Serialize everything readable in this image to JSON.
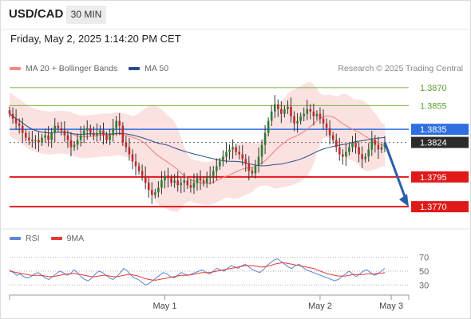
{
  "header": {
    "symbol": "USD/CAD",
    "timeframe": "30 MIN",
    "datetime": "Friday, May 2, 2025 1:14:20 PM CET"
  },
  "legend": {
    "items": [
      {
        "label": "MA 20 + Bollinger Bands",
        "color": "#f28b82"
      },
      {
        "label": "MA 50",
        "color": "#2c4f8a"
      }
    ],
    "credit": "Research © 2025 Trading Central"
  },
  "rsi_legend": {
    "items": [
      {
        "label": "RSI",
        "color": "#5b86d6"
      },
      {
        "label": "9MA",
        "color": "#e53935"
      }
    ]
  },
  "chart_data": [
    {
      "type": "candlestick",
      "title": "",
      "ylim": [
        1.3752,
        1.3878
      ],
      "x_ticks": [
        {
          "label": "May 1",
          "index": 48
        },
        {
          "label": "May 2",
          "index": 96
        },
        {
          "label": "May 3",
          "index": 118
        }
      ],
      "levels": [
        {
          "value": 1.387,
          "label": "1.3870",
          "kind": "target",
          "color": "#7cb342"
        },
        {
          "value": 1.3855,
          "label": "1.3855",
          "kind": "target",
          "color": "#7cb342"
        },
        {
          "value": 1.3835,
          "label": "1.3835",
          "kind": "pivot",
          "color": "#2f6fe0"
        },
        {
          "value": 1.3824,
          "label": "1.3824",
          "kind": "last",
          "color": "#2b2b2b"
        },
        {
          "value": 1.3795,
          "label": "1.3795",
          "kind": "support",
          "color": "#e01919"
        },
        {
          "value": 1.377,
          "label": "1.3770",
          "kind": "support",
          "color": "#e01919"
        }
      ],
      "close_path": [
        1.3848,
        1.3844,
        1.384,
        1.3838,
        1.3832,
        1.3828,
        1.3826,
        1.3825,
        1.3826,
        1.3824,
        1.3828,
        1.383,
        1.3826,
        1.3832,
        1.3838,
        1.3836,
        1.3834,
        1.383,
        1.3826,
        1.382,
        1.3822,
        1.3826,
        1.383,
        1.3834,
        1.3836,
        1.3832,
        1.383,
        1.3832,
        1.3834,
        1.383,
        1.3826,
        1.383,
        1.3836,
        1.3842,
        1.3838,
        1.3824,
        1.382,
        1.3814,
        1.3808,
        1.3804,
        1.38,
        1.3796,
        1.379,
        1.3784,
        1.378,
        1.3782,
        1.3786,
        1.3792,
        1.3796,
        1.3794,
        1.379,
        1.3792,
        1.3788,
        1.379,
        1.3792,
        1.3788,
        1.3786,
        1.379,
        1.3794,
        1.3792,
        1.379,
        1.3794,
        1.3796,
        1.38,
        1.3804,
        1.3808,
        1.3812,
        1.3816,
        1.3818,
        1.382,
        1.3816,
        1.3814,
        1.381,
        1.3806,
        1.38,
        1.3798,
        1.3804,
        1.3812,
        1.3822,
        1.3832,
        1.3842,
        1.385,
        1.3856,
        1.3852,
        1.3848,
        1.3852,
        1.3854,
        1.3846,
        1.384,
        1.3842,
        1.3846,
        1.3848,
        1.3852,
        1.385,
        1.3846,
        1.3848,
        1.3844,
        1.384,
        1.3836,
        1.383,
        1.3826,
        1.382,
        1.3814,
        1.3812,
        1.3816,
        1.382,
        1.3824,
        1.382,
        1.3814,
        1.381,
        1.3812,
        1.3818,
        1.3826,
        1.3822,
        1.3818,
        1.382,
        1.3824
      ]
    },
    {
      "type": "line",
      "title": "RSI",
      "ylim": [
        20,
        80
      ],
      "y_ticks": [
        70,
        50,
        30
      ],
      "series": [
        {
          "name": "RSI",
          "color": "#5b86d6",
          "values": [
            52,
            48,
            44,
            46,
            42,
            40,
            42,
            46,
            48,
            44,
            40,
            38,
            42,
            46,
            50,
            48,
            44,
            46,
            52,
            48,
            42,
            38,
            36,
            40,
            46,
            50,
            48,
            44,
            40,
            38,
            42,
            48,
            54,
            50,
            44,
            40,
            38,
            34,
            30,
            32,
            36,
            40,
            44,
            48,
            46,
            42,
            40,
            44,
            48,
            46,
            44,
            46,
            48,
            50,
            52,
            48,
            46,
            50,
            54,
            52,
            50,
            54,
            58,
            56,
            54,
            58,
            60,
            56,
            52,
            50,
            48,
            52,
            58,
            62,
            66,
            68,
            64,
            60,
            56,
            54,
            58,
            60,
            56,
            52,
            50,
            48,
            46,
            44,
            42,
            40,
            38,
            36,
            38,
            42,
            46,
            50,
            46,
            42,
            46,
            50,
            52,
            48,
            44,
            46,
            50,
            54
          ]
        },
        {
          "name": "9MA",
          "color": "#e53935",
          "values": [
            50,
            49,
            48,
            47,
            46,
            45,
            44,
            44,
            44,
            44,
            43,
            42,
            42,
            43,
            44,
            45,
            46,
            46,
            47,
            46,
            45,
            44,
            43,
            42,
            42,
            43,
            44,
            44,
            43,
            42,
            42,
            43,
            44,
            45,
            45,
            44,
            43,
            41,
            39,
            38,
            37,
            37,
            38,
            39,
            40,
            41,
            42,
            43,
            44,
            44,
            44,
            45,
            46,
            47,
            48,
            48,
            48,
            49,
            50,
            51,
            52,
            53,
            54,
            55,
            56,
            57,
            58,
            58,
            58,
            57,
            56,
            56,
            57,
            58,
            60,
            61,
            62,
            62,
            61,
            60,
            59,
            58,
            57,
            56,
            55,
            54,
            52,
            50,
            48,
            46,
            45,
            44,
            43,
            43,
            43,
            44,
            45,
            45,
            45,
            45,
            46,
            46,
            46,
            47,
            47,
            48
          ]
        }
      ]
    }
  ]
}
